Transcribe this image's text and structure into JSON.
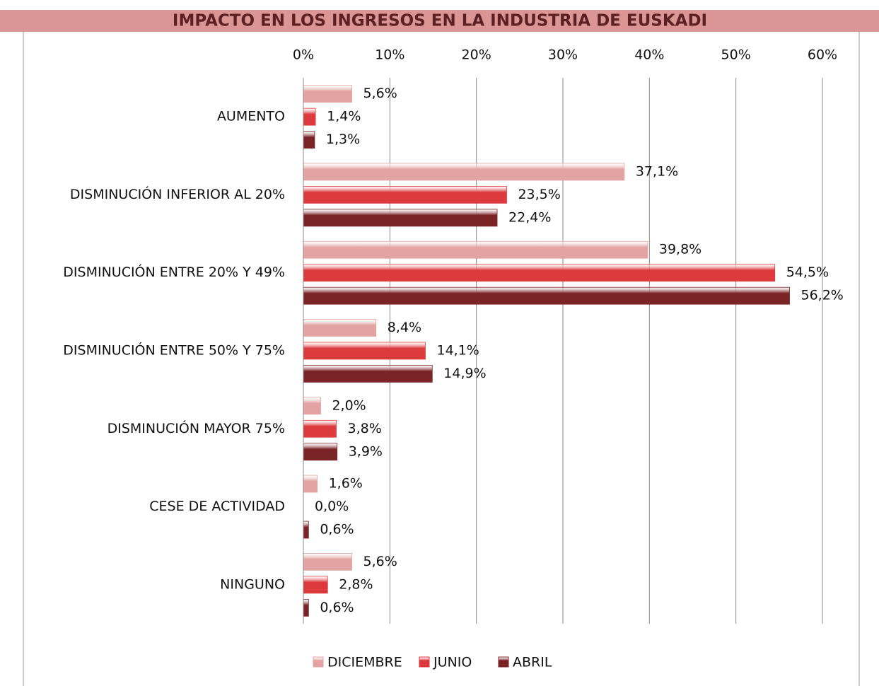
{
  "chart_data": {
    "type": "hbar",
    "title": "IMPACTO EN LOS INGRESOS EN LA INDUSTRIA DE EUSKADI",
    "categories": [
      "AUMENTO",
      "DISMINUCIÓN INFERIOR AL 20%",
      "DISMINUCIÓN ENTRE 20% Y 49%",
      "DISMINUCIÓN ENTRE 50% Y 75%",
      "DISMINUCIÓN MAYOR 75%",
      "CESE DE ACTIVIDAD",
      "NINGUNO"
    ],
    "series": [
      {
        "name": "DICIEMBRE",
        "color": "#e3a3a3",
        "values": [
          5.6,
          37.1,
          39.8,
          8.4,
          2.0,
          1.6,
          5.6
        ],
        "value_labels": [
          "5,6%",
          "37,1%",
          "39,8%",
          "8,4%",
          "2,0%",
          "1,6%",
          "5,6%"
        ]
      },
      {
        "name": "JUNIO",
        "color": "#dd3a3e",
        "values": [
          1.4,
          23.5,
          54.5,
          14.1,
          3.8,
          0.0,
          2.8
        ],
        "value_labels": [
          "1,4%",
          "23,5%",
          "54,5%",
          "14,1%",
          "3,8%",
          "0,0%",
          "2,8%"
        ]
      },
      {
        "name": "ABRIL",
        "color": "#7b2428",
        "values": [
          1.3,
          22.4,
          56.2,
          14.9,
          3.9,
          0.6,
          0.6
        ],
        "value_labels": [
          "1,3%",
          "22,4%",
          "56,2%",
          "14,9%",
          "3,9%",
          "0,6%",
          "0,6%"
        ]
      }
    ],
    "xlim": [
      0,
      60
    ],
    "xticks": [
      {
        "value": 0,
        "label": "0%"
      },
      {
        "value": 10,
        "label": "10%"
      },
      {
        "value": 20,
        "label": "20%"
      },
      {
        "value": 30,
        "label": "30%"
      },
      {
        "value": 40,
        "label": "40%"
      },
      {
        "value": 50,
        "label": "50%"
      },
      {
        "value": 60,
        "label": "60%"
      }
    ],
    "grid": true,
    "legend": "bottom"
  }
}
